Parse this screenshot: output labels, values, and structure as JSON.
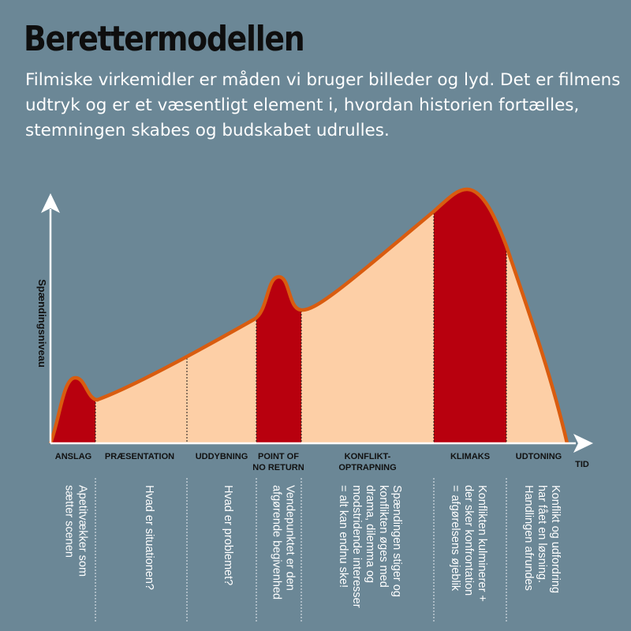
{
  "title": "Berettermodellen",
  "intro": "Filmiske virkemidler er måden vi bruger billeder og lyd. Det er filmens udtryk og er et væsentligt element i, hvordan historien fortælles, stemningen skabes og budskabet udrulles.",
  "axes": {
    "y_label": "Spændingsniveau",
    "x_label": "TID"
  },
  "colors": {
    "background": "#6b8796",
    "peak_fill": "#b8000e",
    "area_fill": "#fdcfa6",
    "curve": "#d95c0f",
    "axis": "#ffffff"
  },
  "phases": [
    {
      "id": "anslag",
      "label": [
        "ANSLAG"
      ],
      "description": [
        "Apetitvækker som",
        "sætter scenen"
      ],
      "highlight": true
    },
    {
      "id": "praesentation",
      "label": [
        "PRÆSENTATION"
      ],
      "description": [
        "Hvad er situationen?"
      ],
      "highlight": false
    },
    {
      "id": "uddybning",
      "label": [
        "UDDYBNING"
      ],
      "description": [
        "Hvad er problemet?"
      ],
      "highlight": false
    },
    {
      "id": "point-of-no-return",
      "label": [
        "POINT OF",
        "NO RETURN"
      ],
      "description": [
        "Vendepunktet er den",
        "afgørende begivenhed"
      ],
      "highlight": true
    },
    {
      "id": "konfliktoptrapning",
      "label": [
        "KONFLIKT-",
        "OPTRAPNING"
      ],
      "description": [
        "Spændingen stiger og",
        "konflikten øges med",
        "drama, dilemma og",
        "modstridende interesser",
        "= alt kan endnu ske!"
      ],
      "highlight": false
    },
    {
      "id": "klimaks",
      "label": [
        "KLIMAKS"
      ],
      "description": [
        "Konflikten kulminerer +",
        "der sker konfrontation",
        "= afgørelsens øjeblik"
      ],
      "highlight": true
    },
    {
      "id": "udtoning",
      "label": [
        "UDTONING"
      ],
      "description": [
        "Konflikt og udfordring",
        "har fået en løsning.",
        "Handlingen afrundes"
      ],
      "highlight": false
    }
  ]
}
